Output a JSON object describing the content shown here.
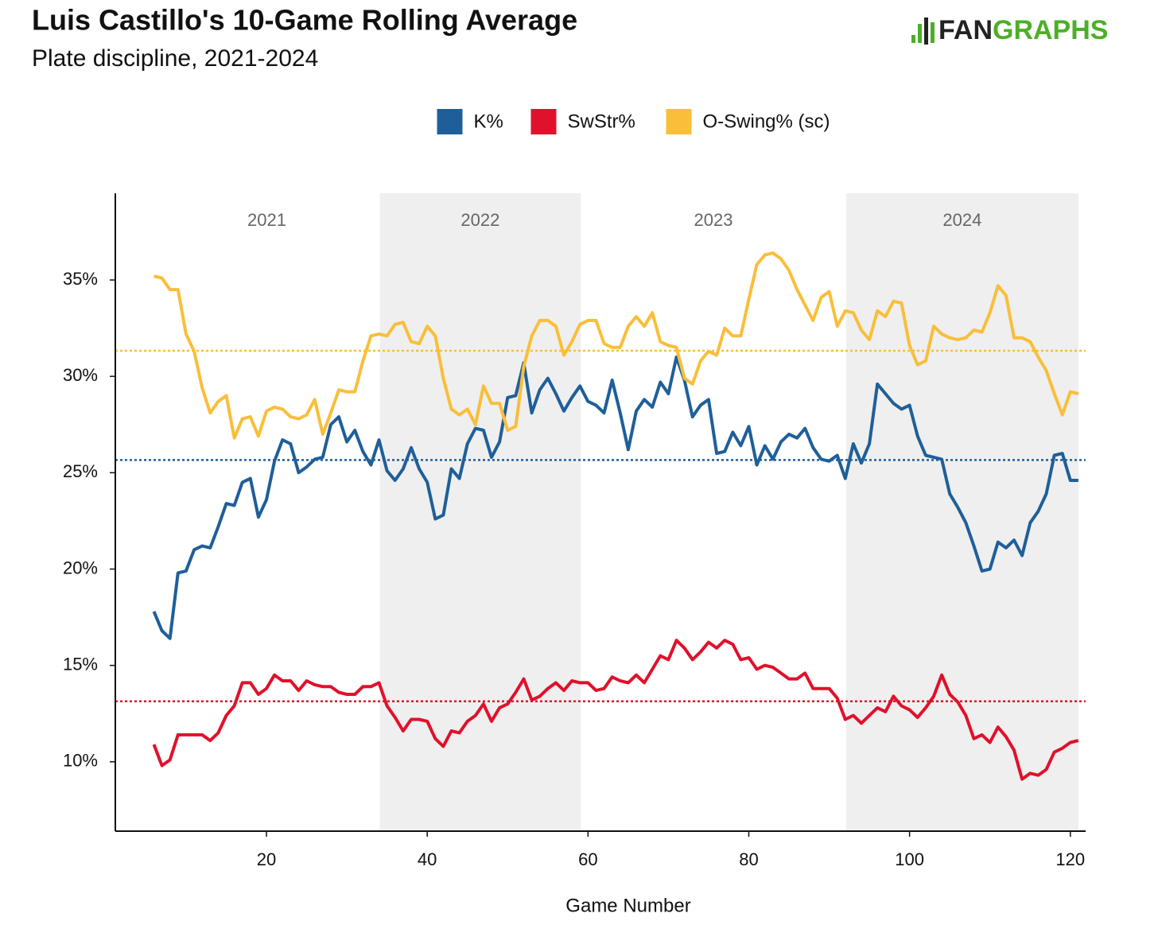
{
  "chart_data": {
    "type": "line",
    "title": "Luis Castillo's 10-Game Rolling Average",
    "subtitle": "Plate discipline, 2021-2024",
    "logo": [
      "FAN",
      "GRAPHS"
    ],
    "x_label": "Game Number",
    "legend": "top",
    "xlim": [
      1.2,
      121.9
    ],
    "ylim": [
      6.4,
      39.5
    ],
    "xticks": [
      20,
      40,
      60,
      80,
      100,
      120
    ],
    "yticks": [
      {
        "value": 10,
        "label": "10%"
      },
      {
        "value": 15,
        "label": "15%"
      },
      {
        "value": 20,
        "label": "20%"
      },
      {
        "value": 25,
        "label": "25%"
      },
      {
        "value": 30,
        "label": "30%"
      },
      {
        "value": 35,
        "label": "35%"
      }
    ],
    "grid": false,
    "spans": [
      {
        "label": "2021",
        "start": 6,
        "end": 34.1,
        "shaded": false
      },
      {
        "label": "2022",
        "start": 34.1,
        "end": 59.1,
        "shaded": true
      },
      {
        "label": "2023",
        "start": 59.1,
        "end": 92.1,
        "shaded": false
      },
      {
        "label": "2024",
        "start": 92.1,
        "end": 121,
        "shaded": true
      }
    ],
    "reference_lines": [
      {
        "value": 31.33,
        "color": "#f9be3a"
      },
      {
        "value": 25.66,
        "color": "#1f5f99"
      },
      {
        "value": 13.14,
        "color": "#e0112b"
      }
    ],
    "x": [
      6,
      7,
      8,
      9,
      10,
      11,
      12,
      13,
      14,
      15,
      16,
      17,
      18,
      19,
      20,
      21,
      22,
      23,
      24,
      25,
      26,
      27,
      28,
      29,
      30,
      31,
      32,
      33,
      34,
      35,
      36,
      37,
      38,
      39,
      40,
      41,
      42,
      43,
      44,
      45,
      46,
      47,
      48,
      49,
      50,
      51,
      52,
      53,
      54,
      55,
      56,
      57,
      58,
      59,
      60,
      61,
      62,
      63,
      64,
      65,
      66,
      67,
      68,
      69,
      70,
      71,
      72,
      73,
      74,
      75,
      76,
      77,
      78,
      79,
      80,
      81,
      82,
      83,
      84,
      85,
      86,
      87,
      88,
      89,
      90,
      91,
      92,
      93,
      94,
      95,
      96,
      97,
      98,
      99,
      100,
      101,
      102,
      103,
      104,
      105,
      106,
      107,
      108,
      109,
      110,
      111,
      112,
      113,
      114,
      115,
      116,
      117,
      118,
      119,
      120,
      121
    ],
    "series": [
      {
        "name": "K%",
        "color": "#1f5f99",
        "values": [
          17.8,
          16.8,
          16.4,
          19.8,
          19.9,
          21.0,
          21.2,
          21.1,
          22.2,
          23.4,
          23.3,
          24.5,
          24.7,
          22.7,
          23.6,
          25.6,
          26.7,
          26.5,
          25.0,
          25.3,
          25.7,
          25.8,
          27.5,
          27.9,
          26.6,
          27.2,
          26.1,
          25.4,
          26.7,
          25.1,
          24.6,
          25.2,
          26.3,
          25.2,
          24.5,
          22.6,
          22.8,
          25.2,
          24.7,
          26.5,
          27.3,
          27.2,
          25.8,
          26.6,
          28.9,
          29.0,
          30.7,
          28.1,
          29.3,
          29.9,
          29.1,
          28.2,
          28.9,
          29.5,
          28.7,
          28.5,
          28.1,
          29.8,
          28.1,
          26.2,
          28.2,
          28.8,
          28.4,
          29.7,
          29.1,
          31.0,
          29.8,
          27.9,
          28.5,
          28.8,
          26.0,
          26.1,
          27.1,
          26.4,
          27.4,
          25.4,
          26.4,
          25.7,
          26.6,
          27.0,
          26.8,
          27.3,
          26.3,
          25.7,
          25.6,
          25.9,
          24.7,
          26.5,
          25.5,
          26.5,
          29.6,
          29.1,
          28.6,
          28.3,
          28.5,
          26.9,
          25.9,
          25.8,
          25.7,
          23.9,
          23.2,
          22.4,
          21.2,
          19.9,
          20.0,
          21.4,
          21.1,
          21.5,
          20.7,
          22.4,
          23.0,
          23.9,
          25.9,
          26.0,
          24.6,
          24.6
        ]
      },
      {
        "name": "SwStr%",
        "color": "#e0112b",
        "values": [
          10.9,
          9.8,
          10.1,
          11.4,
          11.4,
          11.4,
          11.4,
          11.1,
          11.5,
          12.4,
          12.9,
          14.1,
          14.1,
          13.5,
          13.8,
          14.5,
          14.2,
          14.2,
          13.7,
          14.2,
          14.0,
          13.9,
          13.9,
          13.6,
          13.5,
          13.5,
          13.9,
          13.9,
          14.1,
          12.9,
          12.3,
          11.6,
          12.2,
          12.2,
          12.1,
          11.2,
          10.8,
          11.6,
          11.5,
          12.1,
          12.4,
          13.0,
          12.1,
          12.8,
          13.0,
          13.6,
          14.3,
          13.2,
          13.4,
          13.8,
          14.1,
          13.7,
          14.2,
          14.1,
          14.1,
          13.7,
          13.8,
          14.4,
          14.2,
          14.1,
          14.5,
          14.1,
          14.8,
          15.5,
          15.3,
          16.3,
          15.9,
          15.3,
          15.7,
          16.2,
          15.9,
          16.3,
          16.1,
          15.3,
          15.4,
          14.8,
          15.0,
          14.9,
          14.6,
          14.3,
          14.3,
          14.6,
          13.8,
          13.8,
          13.8,
          13.3,
          12.2,
          12.4,
          12.0,
          12.4,
          12.8,
          12.6,
          13.4,
          12.9,
          12.7,
          12.3,
          12.8,
          13.4,
          14.5,
          13.5,
          13.1,
          12.4,
          11.2,
          11.4,
          11.0,
          11.8,
          11.3,
          10.6,
          9.1,
          9.4,
          9.3,
          9.6,
          10.5,
          10.7,
          11.0,
          11.1
        ]
      },
      {
        "name": "O-Swing% (sc)",
        "color": "#f9be3a",
        "values": [
          35.2,
          35.1,
          34.5,
          34.5,
          32.2,
          31.3,
          29.4,
          28.1,
          28.7,
          29.0,
          26.8,
          27.8,
          27.9,
          26.9,
          28.2,
          28.4,
          28.3,
          27.9,
          27.8,
          28.0,
          28.8,
          27.0,
          28.1,
          29.3,
          29.2,
          29.2,
          30.8,
          32.1,
          32.2,
          32.1,
          32.7,
          32.8,
          31.8,
          31.7,
          32.6,
          32.1,
          29.9,
          28.3,
          28.0,
          28.3,
          27.5,
          29.5,
          28.6,
          28.6,
          27.2,
          27.4,
          30.5,
          32.1,
          32.9,
          32.9,
          32.6,
          31.1,
          31.8,
          32.7,
          32.9,
          32.9,
          31.7,
          31.5,
          31.5,
          32.6,
          33.1,
          32.6,
          33.3,
          31.8,
          31.6,
          31.5,
          29.9,
          29.6,
          30.8,
          31.3,
          31.1,
          32.5,
          32.1,
          32.1,
          34.0,
          35.8,
          36.3,
          36.4,
          36.1,
          35.5,
          34.5,
          33.7,
          32.9,
          34.1,
          34.4,
          32.6,
          33.4,
          33.3,
          32.4,
          31.9,
          33.4,
          33.1,
          33.9,
          33.8,
          31.6,
          30.6,
          30.8,
          32.6,
          32.2,
          32.0,
          31.9,
          32.0,
          32.4,
          32.3,
          33.3,
          34.7,
          34.2,
          32.0,
          32.0,
          31.8,
          31.0,
          30.3,
          29.1,
          28.0,
          29.2,
          29.1
        ]
      }
    ]
  }
}
